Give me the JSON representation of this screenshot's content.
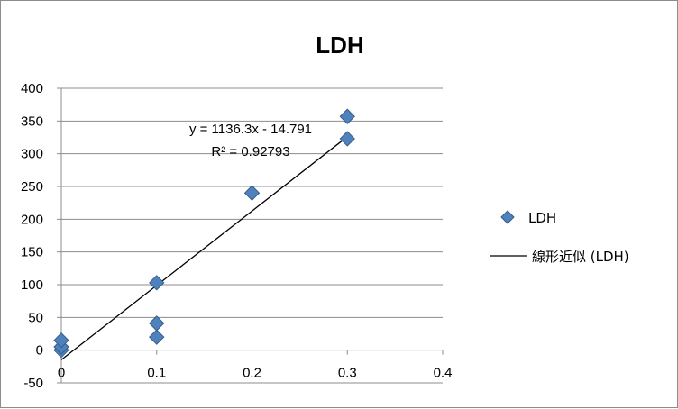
{
  "chart_data": {
    "type": "scatter",
    "title": "LDH",
    "xlim": [
      0,
      0.4
    ],
    "ylim": [
      -50,
      400
    ],
    "x_ticks": [
      "0",
      "0.1",
      "0.2",
      "0.3",
      "0.4"
    ],
    "y_ticks": [
      "400",
      "350",
      "300",
      "250",
      "200",
      "150",
      "100",
      "50",
      "0",
      "-50"
    ],
    "grid": "horizontal",
    "legend_position": "right",
    "series": [
      {
        "name": "LDH",
        "color": "#4f81bd",
        "marker": "diamond",
        "points": [
          {
            "x": 0,
            "y": 0
          },
          {
            "x": 0,
            "y": 5
          },
          {
            "x": 0,
            "y": 15
          },
          {
            "x": 0.1,
            "y": 20
          },
          {
            "x": 0.1,
            "y": 41
          },
          {
            "x": 0.1,
            "y": 103
          },
          {
            "x": 0.2,
            "y": 240
          },
          {
            "x": 0.3,
            "y": 323
          },
          {
            "x": 0.3,
            "y": 357
          }
        ]
      }
    ],
    "trendline": {
      "name": "線形近似 (LDH)",
      "slope": 1136.3,
      "intercept": -14.791,
      "x_range": [
        0,
        0.3
      ],
      "equation": "y = 1136.3x - 14.791",
      "r2": "R² = 0.92793",
      "color": "#000000"
    }
  }
}
